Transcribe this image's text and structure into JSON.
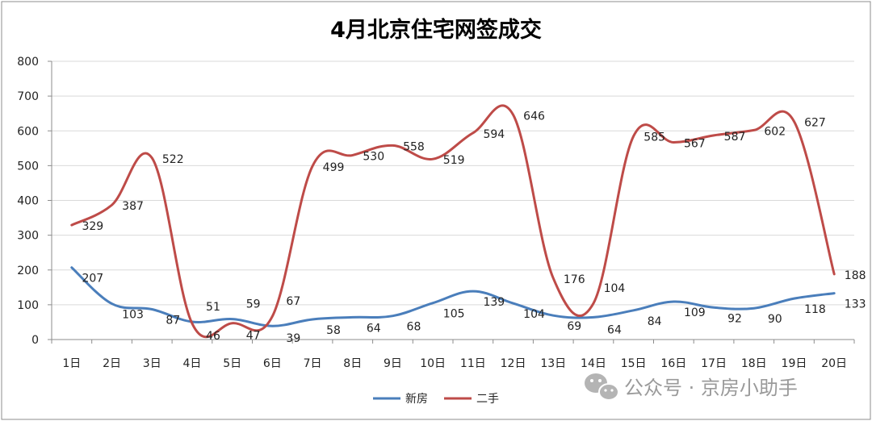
{
  "chart_data": {
    "type": "line",
    "title": "4月北京住宅网签成交",
    "categories": [
      "1日",
      "2日",
      "3日",
      "4日",
      "5日",
      "6日",
      "7日",
      "8日",
      "9日",
      "10日",
      "11日",
      "12日",
      "13日",
      "14日",
      "15日",
      "16日",
      "17日",
      "18日",
      "19日",
      "20日"
    ],
    "ylim": [
      0,
      800
    ],
    "yticks": [
      0,
      100,
      200,
      300,
      400,
      500,
      600,
      700,
      800
    ],
    "grid": true,
    "legend_position": "bottom",
    "series": [
      {
        "name": "新房",
        "color": "#4a7ebb",
        "values": [
          207,
          103,
          87,
          51,
          59,
          39,
          58,
          64,
          68,
          105,
          139,
          104,
          69,
          64,
          84,
          109,
          92,
          90,
          118,
          133
        ]
      },
      {
        "name": "二手",
        "color": "#be4b48",
        "values": [
          329,
          387,
          522,
          46,
          47,
          67,
          499,
          530,
          558,
          519,
          594,
          646,
          176,
          104,
          585,
          567,
          587,
          602,
          627,
          188
        ]
      }
    ]
  },
  "watermark": {
    "icon": "wechat-icon",
    "text": "公众号 · 京房小助手"
  }
}
